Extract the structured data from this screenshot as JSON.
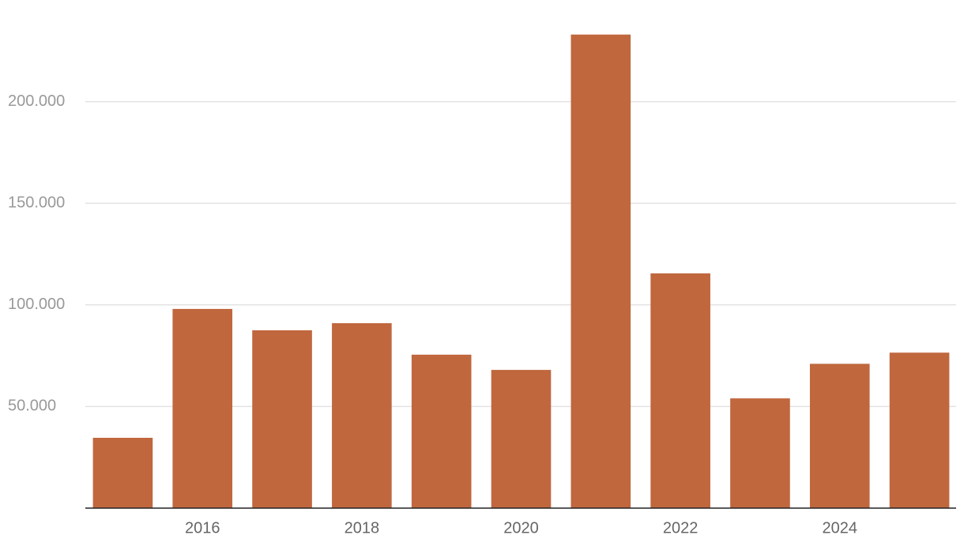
{
  "chart_data": {
    "type": "bar",
    "x": [
      2015,
      2016,
      2017,
      2018,
      2019,
      2020,
      2021,
      2022,
      2023,
      2024,
      2025
    ],
    "values": [
      34600,
      98000,
      87500,
      91000,
      75500,
      68000,
      233000,
      115500,
      54000,
      71000,
      76500
    ],
    "color": "#c0673e",
    "xlim": [
      2014.5,
      2025.5
    ],
    "xticks": [
      2016,
      2018,
      2020,
      2022,
      2024
    ],
    "ylim": [
      0,
      250000
    ],
    "yticks": [
      {
        "value": 50000,
        "label": "50.000"
      },
      {
        "value": 100000,
        "label": "100.000"
      },
      {
        "value": 150000,
        "label": "150.000"
      },
      {
        "value": 200000,
        "label": "200.000"
      }
    ],
    "grid": true
  }
}
